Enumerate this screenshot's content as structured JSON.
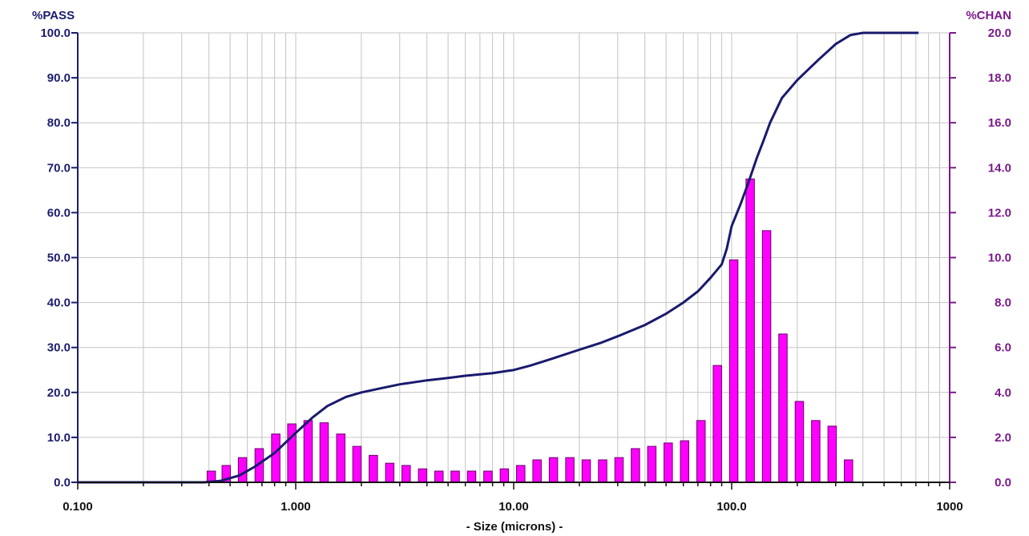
{
  "chart_data": {
    "type": "bar+line",
    "xlabel": "- Size (microns) -",
    "ylabel_left": "%PASS",
    "ylabel_right": "%CHAN",
    "x_scale": "log",
    "xlim": [
      0.1,
      1000
    ],
    "x_ticks": [
      {
        "value": 0.1,
        "label": "0.100"
      },
      {
        "value": 1,
        "label": "1.000"
      },
      {
        "value": 10,
        "label": "10.00"
      },
      {
        "value": 100,
        "label": "100.0"
      },
      {
        "value": 1000,
        "label": "1000"
      }
    ],
    "ylim_left": [
      0,
      100
    ],
    "ylim_right": [
      0,
      20
    ],
    "y_ticks_left": [
      "0.0",
      "10.0",
      "20.0",
      "30.0",
      "40.0",
      "50.0",
      "60.0",
      "70.0",
      "80.0",
      "90.0",
      "100.0"
    ],
    "y_ticks_right": [
      "0.0",
      "2.0",
      "4.0",
      "6.0",
      "8.0",
      "10.0",
      "12.0",
      "14.0",
      "16.0",
      "18.0",
      "20.0"
    ],
    "grid": true,
    "colors": {
      "pass_line": "#1a1a6e",
      "chan_bars": "#ff00ff",
      "bar_outline": "#6a006a",
      "grid": "#c4c4c4",
      "left_axis": "#1c1c6e",
      "right_axis": "#7a1a8a"
    },
    "series": [
      {
        "name": "%CHAN",
        "axis": "right",
        "kind": "bar",
        "x": [
          0.41,
          0.48,
          0.57,
          0.68,
          0.81,
          0.96,
          1.14,
          1.35,
          1.61,
          1.91,
          2.27,
          2.7,
          3.21,
          3.82,
          4.54,
          5.39,
          6.41,
          7.62,
          9.06,
          10.77,
          12.8,
          15.22,
          18.1,
          21.52,
          25.59,
          30.43,
          36.18,
          43.02,
          51.15,
          60.82,
          72.32,
          85.99,
          102.2,
          121.6,
          144.6,
          171.9,
          204.4,
          243.0,
          289.0,
          343.6
        ],
        "values": [
          0.5,
          0.75,
          1.1,
          1.5,
          2.15,
          2.6,
          2.75,
          2.65,
          2.15,
          1.6,
          1.2,
          0.85,
          0.75,
          0.6,
          0.5,
          0.5,
          0.5,
          0.5,
          0.6,
          0.75,
          1.0,
          1.1,
          1.1,
          1.0,
          1.0,
          1.1,
          1.5,
          1.6,
          1.75,
          1.85,
          2.75,
          5.2,
          9.9,
          13.5,
          11.2,
          6.6,
          3.6,
          2.75,
          2.5,
          1.0
        ]
      },
      {
        "name": "%PASS",
        "axis": "left",
        "kind": "line",
        "x": [
          0.1,
          0.38,
          0.45,
          0.55,
          0.65,
          0.8,
          1.0,
          1.2,
          1.4,
          1.7,
          2.0,
          2.5,
          3.0,
          4.0,
          5.0,
          6.0,
          8.0,
          10.0,
          12.0,
          15.0,
          20.0,
          25.0,
          30.0,
          40.0,
          50.0,
          60.0,
          70.0,
          80.0,
          90.0,
          95.0,
          100.0,
          110.0,
          120.0,
          130.0,
          140.0,
          150.0,
          170.0,
          200.0,
          250.0,
          300.0,
          350.0,
          400.0,
          500.0,
          600.0,
          720.0
        ],
        "values": [
          0.0,
          0.0,
          0.3,
          1.5,
          3.5,
          6.5,
          11.0,
          14.5,
          17.0,
          19.0,
          20.0,
          21.0,
          21.8,
          22.7,
          23.2,
          23.7,
          24.3,
          25.0,
          26.0,
          27.5,
          29.5,
          31.0,
          32.5,
          35.0,
          37.5,
          40.0,
          42.5,
          45.5,
          48.5,
          52.0,
          57.0,
          62.0,
          67.0,
          72.0,
          76.0,
          80.0,
          85.5,
          89.5,
          94.0,
          97.5,
          99.5,
          100.0,
          100.0,
          100.0,
          100.0
        ]
      }
    ]
  }
}
